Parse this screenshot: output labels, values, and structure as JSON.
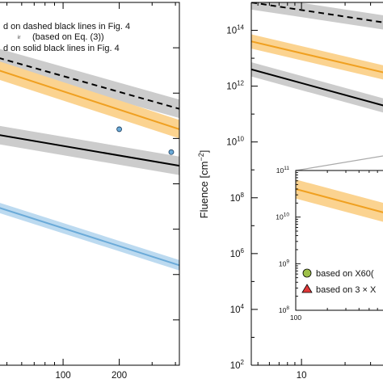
{
  "chart_data": [
    {
      "type": "line",
      "panel": "left",
      "title": "",
      "xlabel": "",
      "ylabel": "",
      "x_scale": "log",
      "y_scale": "log",
      "xlim": [
        45,
        420
      ],
      "ylim": [
        1000000.0,
        100000000000000.0
      ],
      "grid": false,
      "x_tick_labels": [
        {
          "value": 100,
          "label": "100"
        },
        {
          "value": 200,
          "label": "200"
        }
      ],
      "legend": {
        "placement": "top-left",
        "entries": [
          "d on dashed black lines in Fig. 4",
          "(based on Eq. (3))",
          "d on solid black lines in Fig. 4"
        ]
      },
      "series": [
        {
          "style": "dashed",
          "color": "#000000",
          "band_color": "#cccccc",
          "x": [
            45,
            420
          ],
          "y": [
            6000000000000.0,
            450000000000.0
          ],
          "band_factor": 1.6
        },
        {
          "style": "solid",
          "color": "#f0a020",
          "band_color": "#fbd390",
          "x": [
            45,
            420
          ],
          "y": [
            3200000000000.0,
            160000000000.0
          ],
          "band_factor": 1.6
        },
        {
          "style": "solid",
          "color": "#000000",
          "band_color": "#cccccc",
          "x": [
            45,
            420
          ],
          "y": [
            120000000000.0,
            25000000000.0
          ],
          "band_factor": 1.6
        },
        {
          "style": "solid",
          "color": "#6aaad8",
          "band_color": "#bcdaf0",
          "x": [
            45,
            420
          ],
          "y": [
            3000000000.0,
            160000000.0
          ],
          "band_factor": 1.3
        }
      ],
      "points": [
        {
          "x": 200,
          "y": 160000000000.0,
          "color": "#6aaad8"
        },
        {
          "x": 380,
          "y": 50000000000.0,
          "color": "#6aaad8"
        }
      ]
    },
    {
      "type": "line",
      "panel": "right",
      "title": "",
      "xlabel": "",
      "ylabel": "Fluence [cm",
      "ylabel_sup": "−2",
      "ylabel_close": "]",
      "x_scale": "log",
      "y_scale": "log",
      "xlim": [
        4.5,
        40
      ],
      "ylim": [
        100.0,
        1000000000000000.0
      ],
      "grid": false,
      "x_tick_labels": [
        {
          "value": 10,
          "label": "10"
        }
      ],
      "y_tick_labels": [
        {
          "exp": 2,
          "label": "10",
          "sup": "2"
        },
        {
          "exp": 4,
          "label": "10",
          "sup": "4"
        },
        {
          "exp": 6,
          "label": "10",
          "sup": "6"
        },
        {
          "exp": 8,
          "label": "10",
          "sup": "8"
        },
        {
          "exp": 10,
          "label": "10",
          "sup": "10"
        },
        {
          "exp": 12,
          "label": "10",
          "sup": "12"
        },
        {
          "exp": 14,
          "label": "10",
          "sup": "14"
        }
      ],
      "series": [
        {
          "style": "dashed",
          "color": "#000000",
          "band_color": "#cccccc",
          "x": [
            4.5,
            40
          ],
          "y": [
            1000000000000000.0,
            180000000000000.0
          ],
          "band_factor": 1.8
        },
        {
          "style": "solid",
          "color": "#f0a020",
          "band_color": "#fbd390",
          "x": [
            4.5,
            40
          ],
          "y": [
            40000000000000.0,
            2800000000000.0
          ],
          "band_factor": 1.8
        },
        {
          "style": "solid",
          "color": "#000000",
          "band_color": "#cccccc",
          "x": [
            4.5,
            40
          ],
          "y": [
            4000000000000.0,
            180000000000.0
          ],
          "band_factor": 1.8
        }
      ],
      "inset": {
        "xlim": [
          100,
          1000
        ],
        "ylim": [
          100000000.0,
          100000000000.0
        ],
        "x_scale": "log",
        "y_scale": "log",
        "x_tick_labels": [
          {
            "value": 100,
            "label": "100"
          }
        ],
        "y_tick_labels": [
          {
            "exp": 8,
            "label": "10",
            "sup": "8"
          },
          {
            "exp": 9,
            "label": "10",
            "sup": "9"
          },
          {
            "exp": 10,
            "label": "10",
            "sup": "10"
          },
          {
            "exp": 11,
            "label": "10",
            "sup": "11"
          }
        ],
        "series": [
          {
            "style": "solid",
            "color": "#f0a020",
            "band_color": "#fbd390",
            "x": [
              100,
              1000
            ],
            "y": [
              40000000000.0,
              10000000000.0
            ],
            "band_factor": 1.6
          }
        ],
        "legend": [
          {
            "marker": "circle",
            "color": "#9ec048",
            "label": "based on X60("
          },
          {
            "marker": "triangle",
            "color": "#e03838",
            "label": "based on 3 × X"
          }
        ]
      }
    }
  ]
}
